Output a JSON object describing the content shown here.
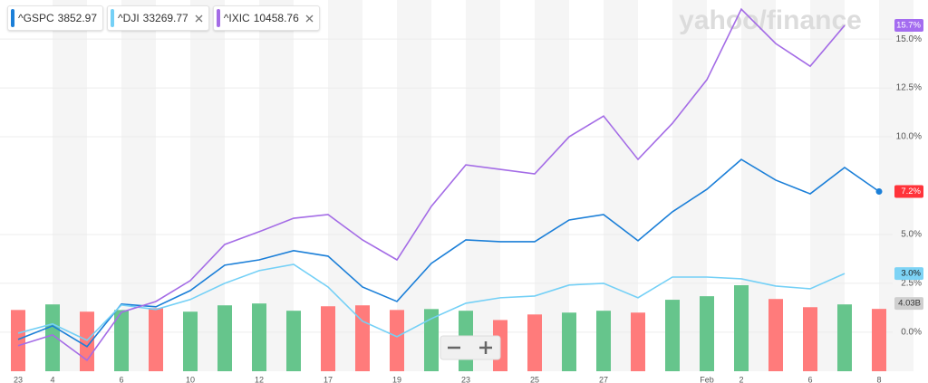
{
  "chart_data": {
    "type": "line",
    "watermark": "yahoo/finance",
    "categories": [
      "23",
      "4",
      null,
      "6",
      null,
      "10",
      null,
      "12",
      null,
      "17",
      null,
      "19",
      null,
      "23",
      null,
      "25",
      null,
      "27",
      null,
      null,
      "Feb",
      "2",
      null,
      "6",
      null,
      "8"
    ],
    "series": [
      {
        "name": "^GSPC",
        "price": 3852.97,
        "color": "#1b7fd8",
        "label_color": "#ff333a",
        "label_text_color": "#ffffff",
        "values": [
          -0.37,
          0.32,
          -0.74,
          1.44,
          1.3,
          2.13,
          3.43,
          3.7,
          4.17,
          3.89,
          2.31,
          1.57,
          3.52,
          4.72,
          4.63,
          4.63,
          5.74,
          6.02,
          4.68,
          6.16,
          7.31,
          8.84,
          7.78,
          7.08,
          8.43,
          7.2
        ],
        "value_labels": [
          null,
          null,
          null,
          null,
          null,
          null,
          null,
          null,
          null,
          null,
          null,
          null,
          null,
          null,
          null,
          null,
          null,
          null,
          null,
          null,
          null,
          null,
          null,
          null,
          null,
          "7.2%"
        ]
      },
      {
        "name": "^DJI",
        "price": 33269.77,
        "color": "#74d0f6",
        "label_color": "#7dd3f5",
        "label_text_color": "#1a1a1a",
        "values": [
          -0.05,
          0.42,
          -0.42,
          1.39,
          1.16,
          1.67,
          2.5,
          3.15,
          3.47,
          2.31,
          0.56,
          -0.23,
          0.69,
          1.48,
          1.76,
          1.85,
          2.41,
          2.5,
          1.76,
          2.82,
          2.82,
          2.73,
          2.36,
          2.22,
          3.0,
          null
        ],
        "value_labels": [
          null,
          null,
          null,
          null,
          null,
          null,
          null,
          null,
          null,
          null,
          null,
          null,
          null,
          null,
          null,
          null,
          null,
          null,
          null,
          null,
          null,
          null,
          null,
          null,
          "3.0%",
          null
        ]
      },
      {
        "name": "^IXIC",
        "price": 10458.76,
        "color": "#a46ce6",
        "label_color": "#a46cf0",
        "label_text_color": "#ffffff",
        "values": [
          -0.69,
          -0.14,
          -1.44,
          1.02,
          1.57,
          2.64,
          4.49,
          5.14,
          5.83,
          6.02,
          4.72,
          3.7,
          6.44,
          8.56,
          8.33,
          8.1,
          10.0,
          11.06,
          8.84,
          10.69,
          12.92,
          16.53,
          14.77,
          13.61,
          15.7,
          null
        ],
        "value_labels": [
          null,
          null,
          null,
          null,
          null,
          null,
          null,
          null,
          null,
          null,
          null,
          null,
          null,
          null,
          null,
          null,
          null,
          null,
          null,
          null,
          null,
          null,
          null,
          null,
          "15.7%",
          null
        ]
      }
    ],
    "ylim": [
      -2,
      17
    ],
    "yticks": [
      {
        "value": 0,
        "label": "0.0%"
      },
      {
        "value": 2.5,
        "label": "2.5%"
      },
      {
        "value": 5,
        "label": "5.0%"
      },
      {
        "value": 10,
        "label": "10.0%"
      },
      {
        "value": 12.5,
        "label": "12.5%"
      },
      {
        "value": 15,
        "label": "15.0%"
      }
    ],
    "grid": true,
    "volume": {
      "ylim": [
        0,
        24
      ],
      "values": [
        3.96,
        4.32,
        3.85,
        3.96,
        4.08,
        3.85,
        4.26,
        4.38,
        3.91,
        4.2,
        4.26,
        3.96,
        4.02,
        3.91,
        3.31,
        3.67,
        3.79,
        3.91,
        3.79,
        4.62,
        4.85,
        5.56,
        4.67,
        4.14,
        4.32,
        4.03
      ],
      "colors": [
        "#ff7b7b",
        "#66c58c",
        "#ff7b7b",
        "#66c58c",
        "#ff7b7b",
        "#66c58c",
        "#66c58c",
        "#66c58c",
        "#66c58c",
        "#ff7b7b",
        "#ff7b7b",
        "#ff7b7b",
        "#66c58c",
        "#66c58c",
        "#ff7b7b",
        "#ff7b7b",
        "#66c58c",
        "#66c58c",
        "#ff7b7b",
        "#66c58c",
        "#66c58c",
        "#66c58c",
        "#ff7b7b",
        "#ff7b7b",
        "#66c58c",
        "#ff7b7b"
      ],
      "value_labels": [
        null,
        null,
        null,
        null,
        null,
        null,
        null,
        null,
        null,
        null,
        null,
        null,
        null,
        null,
        null,
        null,
        null,
        null,
        null,
        null,
        null,
        null,
        null,
        null,
        null,
        "4.03B"
      ]
    }
  }
}
